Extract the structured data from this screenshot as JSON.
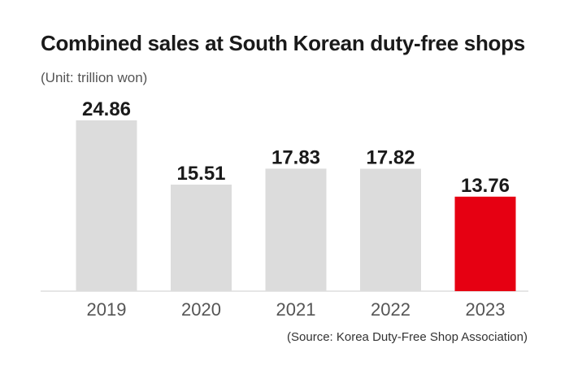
{
  "chart_data": {
    "type": "bar",
    "title": "Combined sales at South Korean duty-free shops",
    "subtitle": "(Unit: trillion won)",
    "source": "(Source: Korea Duty-Free Shop Association)",
    "categories": [
      "2019",
      "2020",
      "2021",
      "2022",
      "2023"
    ],
    "values": [
      24.86,
      15.51,
      17.83,
      17.82,
      13.76
    ],
    "value_labels": [
      "24.86",
      "15.51",
      "17.83",
      "17.82",
      "13.76"
    ],
    "ylim": [
      0,
      24.86
    ],
    "grid": false,
    "legend": "none",
    "colors": {
      "default_bar": "#dcdcdc",
      "highlight_bar": "#e60012",
      "baseline": "#cccccc"
    },
    "highlight_index": 4
  }
}
